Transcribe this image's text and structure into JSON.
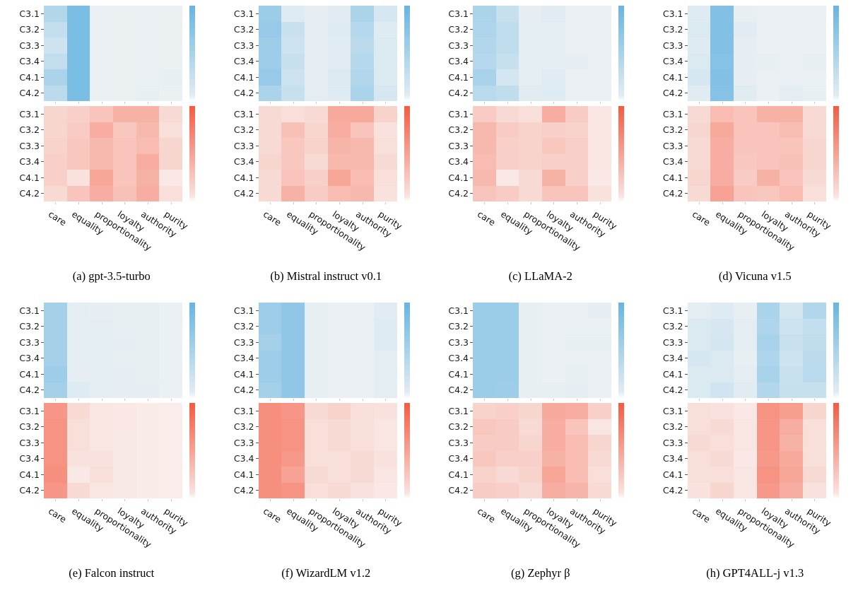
{
  "figure": {
    "layout": "2 rows x 4 columns of model panels, each panel has a blue (top) and red (bottom) heatmap with its own colorbar"
  },
  "chart_data": {
    "type": "heatmap",
    "rows": [
      "C3.1",
      "C3.2",
      "C3.3",
      "C3.4",
      "C4.1",
      "C4.2"
    ],
    "columns": [
      "care",
      "equality",
      "proportionality",
      "loyalty",
      "authority",
      "purity"
    ],
    "value_scale": "relative color intensity 0-1 estimated from cell shade; no numeric scale shown in figure",
    "legend_position": "vertical colorbar right of each heatmap, saturated at top fading to white at bottom",
    "colors": {
      "blue_low": "#eff2f4",
      "blue_high": "#67b5e1",
      "red_low": "#f9f1ef",
      "red_high": "#f55a41",
      "tick": "#c8c8c8",
      "text": "#111111"
    },
    "panels": [
      {
        "label": "(a)",
        "model": "gpt-3.5-turbo",
        "caption": "(a) gpt-3.5-turbo",
        "blue": [
          [
            0.45,
            0.85,
            0.04,
            0.03,
            0.04,
            0.03
          ],
          [
            0.32,
            0.85,
            0.04,
            0.03,
            0.04,
            0.03
          ],
          [
            0.25,
            0.85,
            0.04,
            0.03,
            0.04,
            0.03
          ],
          [
            0.33,
            0.85,
            0.04,
            0.03,
            0.04,
            0.03
          ],
          [
            0.5,
            0.85,
            0.04,
            0.03,
            0.04,
            0.05
          ],
          [
            0.38,
            0.85,
            0.04,
            0.03,
            0.05,
            0.03
          ]
        ],
        "red": [
          [
            0.18,
            0.22,
            0.3,
            0.42,
            0.42,
            0.15
          ],
          [
            0.18,
            0.25,
            0.45,
            0.28,
            0.38,
            0.12
          ],
          [
            0.2,
            0.28,
            0.38,
            0.3,
            0.35,
            0.18
          ],
          [
            0.22,
            0.28,
            0.38,
            0.3,
            0.45,
            0.18
          ],
          [
            0.22,
            0.1,
            0.5,
            0.3,
            0.42,
            0.06
          ],
          [
            0.15,
            0.3,
            0.45,
            0.32,
            0.45,
            0.12
          ]
        ]
      },
      {
        "label": "(b)",
        "model": "Mistral instruct v0.1",
        "caption": "(b) Mistral instruct v0.1",
        "blue": [
          [
            0.62,
            0.12,
            0.06,
            0.1,
            0.5,
            0.18
          ],
          [
            0.65,
            0.28,
            0.06,
            0.12,
            0.42,
            0.12
          ],
          [
            0.6,
            0.25,
            0.06,
            0.1,
            0.38,
            0.15
          ],
          [
            0.6,
            0.3,
            0.06,
            0.1,
            0.42,
            0.15
          ],
          [
            0.65,
            0.25,
            0.06,
            0.14,
            0.45,
            0.15
          ],
          [
            0.5,
            0.3,
            0.08,
            0.12,
            0.5,
            0.18
          ]
        ],
        "red": [
          [
            0.15,
            0.12,
            0.15,
            0.48,
            0.48,
            0.2
          ],
          [
            0.15,
            0.32,
            0.18,
            0.45,
            0.3,
            0.1
          ],
          [
            0.15,
            0.28,
            0.2,
            0.4,
            0.38,
            0.12
          ],
          [
            0.18,
            0.28,
            0.15,
            0.38,
            0.38,
            0.15
          ],
          [
            0.15,
            0.3,
            0.22,
            0.5,
            0.35,
            0.12
          ],
          [
            0.15,
            0.42,
            0.25,
            0.35,
            0.38,
            0.1
          ]
        ]
      },
      {
        "label": "(c)",
        "model": "LLaMA-2",
        "caption": "(c) LLaMA-2",
        "blue": [
          [
            0.5,
            0.3,
            0.06,
            0.1,
            0.04,
            0.04
          ],
          [
            0.48,
            0.35,
            0.08,
            0.08,
            0.04,
            0.04
          ],
          [
            0.45,
            0.35,
            0.08,
            0.08,
            0.04,
            0.04
          ],
          [
            0.42,
            0.3,
            0.08,
            0.08,
            0.06,
            0.04
          ],
          [
            0.52,
            0.2,
            0.08,
            0.1,
            0.04,
            0.04
          ],
          [
            0.4,
            0.35,
            0.1,
            0.12,
            0.04,
            0.04
          ]
        ],
        "red": [
          [
            0.25,
            0.15,
            0.12,
            0.45,
            0.25,
            0.08
          ],
          [
            0.38,
            0.25,
            0.2,
            0.22,
            0.2,
            0.08
          ],
          [
            0.38,
            0.22,
            0.2,
            0.28,
            0.22,
            0.08
          ],
          [
            0.35,
            0.22,
            0.2,
            0.22,
            0.22,
            0.08
          ],
          [
            0.38,
            0.06,
            0.15,
            0.42,
            0.22,
            0.06
          ],
          [
            0.3,
            0.25,
            0.15,
            0.3,
            0.3,
            0.1
          ]
        ]
      },
      {
        "label": "(d)",
        "model": "Vicuna v1.5",
        "caption": "(d) Vicuna v1.5",
        "blue": [
          [
            0.12,
            0.8,
            0.05,
            0.04,
            0.04,
            0.04
          ],
          [
            0.15,
            0.8,
            0.1,
            0.04,
            0.04,
            0.04
          ],
          [
            0.12,
            0.8,
            0.06,
            0.04,
            0.04,
            0.04
          ],
          [
            0.15,
            0.78,
            0.06,
            0.05,
            0.04,
            0.05
          ],
          [
            0.18,
            0.8,
            0.06,
            0.04,
            0.04,
            0.04
          ],
          [
            0.1,
            0.78,
            0.1,
            0.04,
            0.08,
            0.05
          ]
        ],
        "red": [
          [
            0.15,
            0.35,
            0.3,
            0.42,
            0.42,
            0.15
          ],
          [
            0.18,
            0.48,
            0.3,
            0.3,
            0.35,
            0.15
          ],
          [
            0.15,
            0.45,
            0.3,
            0.3,
            0.3,
            0.18
          ],
          [
            0.15,
            0.45,
            0.28,
            0.3,
            0.32,
            0.18
          ],
          [
            0.18,
            0.45,
            0.25,
            0.42,
            0.3,
            0.15
          ],
          [
            0.15,
            0.52,
            0.3,
            0.28,
            0.35,
            0.12
          ]
        ]
      },
      {
        "label": "(e)",
        "model": "Falcon instruct",
        "caption": "(e) Falcon instruct",
        "blue": [
          [
            0.55,
            0.08,
            0.06,
            0.05,
            0.05,
            0.04
          ],
          [
            0.55,
            0.08,
            0.08,
            0.05,
            0.05,
            0.04
          ],
          [
            0.55,
            0.08,
            0.08,
            0.06,
            0.05,
            0.04
          ],
          [
            0.55,
            0.08,
            0.08,
            0.05,
            0.05,
            0.04
          ],
          [
            0.6,
            0.06,
            0.08,
            0.06,
            0.05,
            0.04
          ],
          [
            0.55,
            0.12,
            0.08,
            0.06,
            0.06,
            0.04
          ]
        ],
        "red": [
          [
            0.6,
            0.15,
            0.08,
            0.06,
            0.04,
            0.03
          ],
          [
            0.62,
            0.12,
            0.08,
            0.06,
            0.04,
            0.03
          ],
          [
            0.62,
            0.12,
            0.08,
            0.05,
            0.04,
            0.03
          ],
          [
            0.62,
            0.1,
            0.1,
            0.05,
            0.04,
            0.03
          ],
          [
            0.65,
            0.06,
            0.12,
            0.05,
            0.04,
            0.03
          ],
          [
            0.6,
            0.15,
            0.08,
            0.05,
            0.04,
            0.03
          ]
        ]
      },
      {
        "label": "(f)",
        "model": "WizardLM v1.2",
        "caption": "(f) WizardLM v1.2",
        "blue": [
          [
            0.6,
            0.7,
            0.05,
            0.04,
            0.04,
            0.1
          ],
          [
            0.6,
            0.7,
            0.05,
            0.04,
            0.04,
            0.12
          ],
          [
            0.55,
            0.7,
            0.05,
            0.04,
            0.04,
            0.12
          ],
          [
            0.6,
            0.7,
            0.05,
            0.04,
            0.04,
            0.08
          ],
          [
            0.6,
            0.7,
            0.05,
            0.04,
            0.04,
            0.08
          ],
          [
            0.55,
            0.7,
            0.05,
            0.04,
            0.04,
            0.08
          ]
        ],
        "red": [
          [
            0.65,
            0.6,
            0.15,
            0.2,
            0.12,
            0.1
          ],
          [
            0.65,
            0.62,
            0.12,
            0.15,
            0.12,
            0.08
          ],
          [
            0.65,
            0.62,
            0.12,
            0.15,
            0.12,
            0.08
          ],
          [
            0.65,
            0.58,
            0.12,
            0.12,
            0.15,
            0.1
          ],
          [
            0.65,
            0.52,
            0.15,
            0.12,
            0.15,
            0.08
          ],
          [
            0.65,
            0.62,
            0.12,
            0.15,
            0.1,
            0.06
          ]
        ]
      },
      {
        "label": "(g)",
        "model": "Zephyr β",
        "caption": "(g) Zephyr β",
        "blue": [
          [
            0.62,
            0.62,
            0.05,
            0.04,
            0.04,
            0.06
          ],
          [
            0.62,
            0.62,
            0.05,
            0.04,
            0.04,
            0.04
          ],
          [
            0.62,
            0.62,
            0.05,
            0.04,
            0.05,
            0.05
          ],
          [
            0.62,
            0.62,
            0.05,
            0.04,
            0.04,
            0.04
          ],
          [
            0.62,
            0.62,
            0.05,
            0.04,
            0.05,
            0.04
          ],
          [
            0.62,
            0.6,
            0.05,
            0.05,
            0.06,
            0.04
          ]
        ],
        "red": [
          [
            0.2,
            0.22,
            0.18,
            0.48,
            0.45,
            0.22
          ],
          [
            0.28,
            0.25,
            0.15,
            0.45,
            0.3,
            0.08
          ],
          [
            0.25,
            0.25,
            0.18,
            0.45,
            0.35,
            0.18
          ],
          [
            0.28,
            0.22,
            0.22,
            0.42,
            0.35,
            0.15
          ],
          [
            0.2,
            0.15,
            0.2,
            0.5,
            0.35,
            0.12
          ],
          [
            0.25,
            0.22,
            0.15,
            0.45,
            0.4,
            0.15
          ]
        ]
      },
      {
        "label": "(h)",
        "model": "GPT4ALL-j v1.3",
        "caption": "(h) GPT4ALL-j v1.3",
        "blue": [
          [
            0.08,
            0.12,
            0.05,
            0.5,
            0.2,
            0.45
          ],
          [
            0.15,
            0.18,
            0.08,
            0.48,
            0.25,
            0.32
          ],
          [
            0.15,
            0.2,
            0.08,
            0.52,
            0.28,
            0.35
          ],
          [
            0.18,
            0.15,
            0.05,
            0.48,
            0.25,
            0.38
          ],
          [
            0.15,
            0.15,
            0.08,
            0.52,
            0.28,
            0.4
          ],
          [
            0.15,
            0.22,
            0.1,
            0.45,
            0.3,
            0.3
          ]
        ],
        "red": [
          [
            0.12,
            0.1,
            0.06,
            0.62,
            0.55,
            0.18
          ],
          [
            0.12,
            0.15,
            0.08,
            0.6,
            0.45,
            0.12
          ],
          [
            0.15,
            0.12,
            0.08,
            0.6,
            0.42,
            0.12
          ],
          [
            0.12,
            0.15,
            0.06,
            0.58,
            0.48,
            0.12
          ],
          [
            0.12,
            0.12,
            0.08,
            0.62,
            0.5,
            0.15
          ],
          [
            0.1,
            0.18,
            0.08,
            0.58,
            0.45,
            0.1
          ]
        ]
      }
    ]
  }
}
